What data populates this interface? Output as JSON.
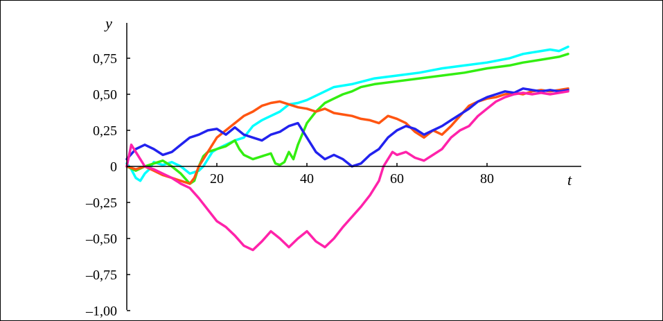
{
  "chart_data": {
    "type": "line",
    "title": "",
    "xlabel": "t",
    "ylabel": "y",
    "xlim": [
      0,
      100
    ],
    "ylim": [
      -1.0,
      1.0
    ],
    "grid": false,
    "x_ticks": [
      {
        "value": 20,
        "label": "20"
      },
      {
        "value": 40,
        "label": "40"
      },
      {
        "value": 60,
        "label": "60"
      },
      {
        "value": 80,
        "label": "80"
      }
    ],
    "y_ticks": [
      {
        "value": 0.75,
        "label": "0,75"
      },
      {
        "value": 0.5,
        "label": "0,50"
      },
      {
        "value": 0.25,
        "label": "0,25"
      },
      {
        "value": 0,
        "label": "0"
      },
      {
        "value": -0.25,
        "label": "–0,25"
      },
      {
        "value": -0.5,
        "label": "–0,50"
      },
      {
        "value": -0.75,
        "label": "–0,75"
      },
      {
        "value": -1.0,
        "label": "–1,00"
      }
    ],
    "series": [
      {
        "color": "#00ffff",
        "points": [
          [
            0,
            0.02
          ],
          [
            1,
            -0.02
          ],
          [
            2,
            -0.08
          ],
          [
            3,
            -0.1
          ],
          [
            4,
            -0.05
          ],
          [
            5,
            -0.02
          ],
          [
            6,
            0.03
          ],
          [
            8,
            0.01
          ],
          [
            10,
            0.03
          ],
          [
            12,
            0.0
          ],
          [
            14,
            -0.05
          ],
          [
            16,
            -0.03
          ],
          [
            17,
            0.0
          ],
          [
            18,
            0.05
          ],
          [
            19,
            0.1
          ],
          [
            20,
            0.12
          ],
          [
            22,
            0.15
          ],
          [
            24,
            0.18
          ],
          [
            26,
            0.2
          ],
          [
            27,
            0.24
          ],
          [
            28,
            0.28
          ],
          [
            30,
            0.32
          ],
          [
            32,
            0.35
          ],
          [
            34,
            0.38
          ],
          [
            36,
            0.43
          ],
          [
            38,
            0.44
          ],
          [
            40,
            0.46
          ],
          [
            42,
            0.49
          ],
          [
            44,
            0.52
          ],
          [
            46,
            0.55
          ],
          [
            50,
            0.57
          ],
          [
            55,
            0.61
          ],
          [
            60,
            0.63
          ],
          [
            65,
            0.65
          ],
          [
            70,
            0.68
          ],
          [
            75,
            0.7
          ],
          [
            80,
            0.72
          ],
          [
            85,
            0.75
          ],
          [
            88,
            0.78
          ],
          [
            90,
            0.79
          ],
          [
            92,
            0.8
          ],
          [
            94,
            0.81
          ],
          [
            96,
            0.8
          ],
          [
            98,
            0.83
          ]
        ]
      },
      {
        "color": "#33ee11",
        "points": [
          [
            0,
            0.0
          ],
          [
            2,
            -0.03
          ],
          [
            4,
            0.0
          ],
          [
            6,
            0.02
          ],
          [
            8,
            0.04
          ],
          [
            10,
            0.0
          ],
          [
            12,
            -0.05
          ],
          [
            14,
            -0.12
          ],
          [
            15,
            -0.1
          ],
          [
            16,
            0.0
          ],
          [
            17,
            0.07
          ],
          [
            18,
            0.1
          ],
          [
            20,
            0.12
          ],
          [
            22,
            0.14
          ],
          [
            24,
            0.18
          ],
          [
            25,
            0.12
          ],
          [
            26,
            0.08
          ],
          [
            28,
            0.05
          ],
          [
            30,
            0.07
          ],
          [
            32,
            0.09
          ],
          [
            33,
            0.02
          ],
          [
            34,
            0.01
          ],
          [
            35,
            0.03
          ],
          [
            36,
            0.1
          ],
          [
            37,
            0.05
          ],
          [
            38,
            0.15
          ],
          [
            40,
            0.3
          ],
          [
            42,
            0.38
          ],
          [
            44,
            0.44
          ],
          [
            46,
            0.47
          ],
          [
            48,
            0.5
          ],
          [
            50,
            0.52
          ],
          [
            52,
            0.55
          ],
          [
            55,
            0.57
          ],
          [
            60,
            0.59
          ],
          [
            65,
            0.61
          ],
          [
            70,
            0.63
          ],
          [
            75,
            0.65
          ],
          [
            80,
            0.68
          ],
          [
            85,
            0.7
          ],
          [
            88,
            0.72
          ],
          [
            90,
            0.73
          ],
          [
            92,
            0.74
          ],
          [
            94,
            0.75
          ],
          [
            96,
            0.76
          ],
          [
            98,
            0.78
          ]
        ]
      },
      {
        "color": "#ff5511",
        "points": [
          [
            0,
            0.0
          ],
          [
            2,
            -0.02
          ],
          [
            4,
            0.0
          ],
          [
            6,
            -0.03
          ],
          [
            8,
            -0.06
          ],
          [
            10,
            -0.08
          ],
          [
            12,
            -0.1
          ],
          [
            14,
            -0.12
          ],
          [
            15,
            -0.08
          ],
          [
            16,
            0.0
          ],
          [
            17,
            0.05
          ],
          [
            18,
            0.1
          ],
          [
            19,
            0.15
          ],
          [
            20,
            0.2
          ],
          [
            22,
            0.25
          ],
          [
            24,
            0.3
          ],
          [
            26,
            0.35
          ],
          [
            28,
            0.38
          ],
          [
            30,
            0.42
          ],
          [
            32,
            0.44
          ],
          [
            34,
            0.45
          ],
          [
            36,
            0.43
          ],
          [
            38,
            0.41
          ],
          [
            40,
            0.4
          ],
          [
            42,
            0.38
          ],
          [
            44,
            0.4
          ],
          [
            46,
            0.37
          ],
          [
            48,
            0.36
          ],
          [
            50,
            0.35
          ],
          [
            52,
            0.33
          ],
          [
            54,
            0.32
          ],
          [
            56,
            0.3
          ],
          [
            58,
            0.35
          ],
          [
            60,
            0.33
          ],
          [
            62,
            0.3
          ],
          [
            64,
            0.24
          ],
          [
            66,
            0.2
          ],
          [
            68,
            0.25
          ],
          [
            70,
            0.22
          ],
          [
            72,
            0.28
          ],
          [
            74,
            0.35
          ],
          [
            76,
            0.42
          ],
          [
            78,
            0.45
          ],
          [
            80,
            0.47
          ],
          [
            82,
            0.48
          ],
          [
            84,
            0.5
          ],
          [
            86,
            0.51
          ],
          [
            88,
            0.5
          ],
          [
            90,
            0.52
          ],
          [
            92,
            0.53
          ],
          [
            94,
            0.52
          ],
          [
            96,
            0.53
          ],
          [
            98,
            0.54
          ]
        ]
      },
      {
        "color": "#2222ee",
        "points": [
          [
            0,
            0.05
          ],
          [
            2,
            0.12
          ],
          [
            4,
            0.15
          ],
          [
            6,
            0.12
          ],
          [
            8,
            0.08
          ],
          [
            10,
            0.1
          ],
          [
            12,
            0.15
          ],
          [
            14,
            0.2
          ],
          [
            16,
            0.22
          ],
          [
            18,
            0.25
          ],
          [
            20,
            0.26
          ],
          [
            22,
            0.22
          ],
          [
            24,
            0.27
          ],
          [
            26,
            0.22
          ],
          [
            28,
            0.2
          ],
          [
            30,
            0.18
          ],
          [
            32,
            0.22
          ],
          [
            34,
            0.24
          ],
          [
            36,
            0.28
          ],
          [
            38,
            0.3
          ],
          [
            40,
            0.2
          ],
          [
            42,
            0.1
          ],
          [
            44,
            0.05
          ],
          [
            46,
            0.08
          ],
          [
            48,
            0.05
          ],
          [
            50,
            0.0
          ],
          [
            52,
            0.02
          ],
          [
            54,
            0.08
          ],
          [
            56,
            0.12
          ],
          [
            58,
            0.2
          ],
          [
            60,
            0.25
          ],
          [
            62,
            0.28
          ],
          [
            64,
            0.26
          ],
          [
            66,
            0.22
          ],
          [
            68,
            0.25
          ],
          [
            70,
            0.28
          ],
          [
            72,
            0.32
          ],
          [
            74,
            0.36
          ],
          [
            76,
            0.4
          ],
          [
            78,
            0.45
          ],
          [
            80,
            0.48
          ],
          [
            82,
            0.5
          ],
          [
            84,
            0.52
          ],
          [
            86,
            0.51
          ],
          [
            88,
            0.54
          ],
          [
            90,
            0.53
          ],
          [
            92,
            0.52
          ],
          [
            94,
            0.53
          ],
          [
            96,
            0.52
          ],
          [
            98,
            0.53
          ]
        ]
      },
      {
        "color": "#ff22aa",
        "points": [
          [
            0,
            0.0
          ],
          [
            1,
            0.15
          ],
          [
            2,
            0.1
          ],
          [
            3,
            0.05
          ],
          [
            4,
            0.0
          ],
          [
            6,
            -0.02
          ],
          [
            8,
            -0.05
          ],
          [
            10,
            -0.08
          ],
          [
            12,
            -0.12
          ],
          [
            14,
            -0.15
          ],
          [
            16,
            -0.22
          ],
          [
            18,
            -0.3
          ],
          [
            20,
            -0.38
          ],
          [
            22,
            -0.42
          ],
          [
            24,
            -0.48
          ],
          [
            26,
            -0.55
          ],
          [
            28,
            -0.58
          ],
          [
            30,
            -0.52
          ],
          [
            32,
            -0.45
          ],
          [
            34,
            -0.5
          ],
          [
            36,
            -0.56
          ],
          [
            38,
            -0.5
          ],
          [
            40,
            -0.45
          ],
          [
            42,
            -0.52
          ],
          [
            44,
            -0.56
          ],
          [
            46,
            -0.5
          ],
          [
            48,
            -0.42
          ],
          [
            50,
            -0.35
          ],
          [
            52,
            -0.28
          ],
          [
            54,
            -0.2
          ],
          [
            56,
            -0.1
          ],
          [
            57,
            0.0
          ],
          [
            58,
            0.05
          ],
          [
            59,
            0.1
          ],
          [
            60,
            0.08
          ],
          [
            62,
            0.1
          ],
          [
            64,
            0.06
          ],
          [
            66,
            0.04
          ],
          [
            68,
            0.08
          ],
          [
            70,
            0.12
          ],
          [
            72,
            0.2
          ],
          [
            74,
            0.25
          ],
          [
            76,
            0.28
          ],
          [
            78,
            0.35
          ],
          [
            80,
            0.4
          ],
          [
            82,
            0.45
          ],
          [
            84,
            0.48
          ],
          [
            86,
            0.5
          ],
          [
            88,
            0.51
          ],
          [
            90,
            0.5
          ],
          [
            92,
            0.51
          ],
          [
            94,
            0.5
          ],
          [
            96,
            0.51
          ],
          [
            98,
            0.52
          ]
        ]
      }
    ]
  }
}
